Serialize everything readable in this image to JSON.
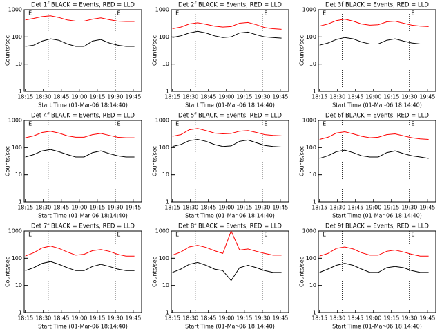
{
  "chart_data": [
    {
      "type": "line",
      "title": "Det 1f BLACK = Events, RED = LLD",
      "xlabel": "Start Time (01-Mar-06 18:14:40)",
      "ylabel": "Counts/sec",
      "log_y": true,
      "x": [
        "18:15",
        "18:22",
        "18:29",
        "18:36",
        "18:43",
        "18:50",
        "18:57",
        "19:04",
        "19:11",
        "19:18",
        "19:25",
        "19:32",
        "19:39",
        "19:46"
      ],
      "xlim": [
        "18:14",
        "19:52"
      ],
      "xticks": [
        "18:15",
        "18:30",
        "18:45",
        "19:00",
        "19:15",
        "19:30",
        "19:45"
      ],
      "ylim": [
        1,
        1000
      ],
      "yticks": [
        1,
        10,
        100,
        1000
      ],
      "vlines": [
        "18:34",
        "19:30"
      ],
      "annotations": [
        {
          "text": "E",
          "x": "18:19"
        },
        {
          "text": "E",
          "x": "19:33"
        }
      ],
      "series": [
        {
          "color": "#000000",
          "values": [
            45,
            50,
            70,
            85,
            75,
            55,
            45,
            45,
            70,
            80,
            60,
            50,
            45,
            45
          ]
        },
        {
          "color": "#ff0000",
          "values": [
            420,
            480,
            560,
            600,
            520,
            420,
            380,
            380,
            450,
            500,
            430,
            380,
            370,
            370
          ]
        }
      ]
    },
    {
      "type": "line",
      "title": "Det 2f BLACK = Events, RED = LLD",
      "xlabel": "Start Time (01-Mar-06 18:14:40)",
      "ylabel": "Counts/sec",
      "log_y": true,
      "x": [
        "18:15",
        "18:22",
        "18:29",
        "18:36",
        "18:43",
        "18:50",
        "18:57",
        "19:04",
        "19:11",
        "19:18",
        "19:25",
        "19:32",
        "19:39",
        "19:46"
      ],
      "xlim": [
        "18:14",
        "19:52"
      ],
      "xticks": [
        "18:15",
        "18:30",
        "18:45",
        "19:00",
        "19:15",
        "19:30",
        "19:45"
      ],
      "ylim": [
        1,
        1000
      ],
      "yticks": [
        1,
        10,
        100,
        1000
      ],
      "vlines": [
        "18:34",
        "19:30"
      ],
      "annotations": [
        {
          "text": "E",
          "x": "18:19"
        },
        {
          "text": "E",
          "x": "19:33"
        }
      ],
      "series": [
        {
          "color": "#000000",
          "values": [
            95,
            110,
            140,
            160,
            140,
            110,
            95,
            100,
            140,
            150,
            120,
            100,
            95,
            90
          ]
        },
        {
          "color": "#ff0000",
          "values": [
            200,
            230,
            300,
            330,
            290,
            250,
            230,
            240,
            320,
            340,
            280,
            220,
            200,
            190
          ]
        }
      ]
    },
    {
      "type": "line",
      "title": "Det 3f BLACK = Events, RED = LLD",
      "xlabel": "Start Time (01-Mar-06 18:14:40)",
      "ylabel": "Counts/sec",
      "log_y": true,
      "x": [
        "18:15",
        "18:22",
        "18:29",
        "18:36",
        "18:43",
        "18:50",
        "18:57",
        "19:04",
        "19:11",
        "19:18",
        "19:25",
        "19:32",
        "19:39",
        "19:46"
      ],
      "xlim": [
        "18:14",
        "19:52"
      ],
      "xticks": [
        "18:15",
        "18:30",
        "18:45",
        "19:00",
        "19:15",
        "19:30",
        "19:45"
      ],
      "ylim": [
        1,
        1000
      ],
      "yticks": [
        1,
        10,
        100,
        1000
      ],
      "vlines": [
        "18:34",
        "19:30"
      ],
      "annotations": [
        {
          "text": "E",
          "x": "18:19"
        },
        {
          "text": "E",
          "x": "19:33"
        }
      ],
      "series": [
        {
          "color": "#000000",
          "values": [
            50,
            60,
            80,
            95,
            85,
            65,
            55,
            55,
            75,
            85,
            70,
            60,
            55,
            55
          ]
        },
        {
          "color": "#ff0000",
          "values": [
            250,
            300,
            400,
            450,
            380,
            300,
            270,
            280,
            360,
            380,
            320,
            270,
            250,
            240
          ]
        }
      ]
    },
    {
      "type": "line",
      "title": "Det 4f BLACK = Events, RED = LLD",
      "xlabel": "Start Time (01-Mar-06 18:14:40)",
      "ylabel": "Counts/sec",
      "log_y": true,
      "x": [
        "18:15",
        "18:22",
        "18:29",
        "18:36",
        "18:43",
        "18:50",
        "18:57",
        "19:04",
        "19:11",
        "19:18",
        "19:25",
        "19:32",
        "19:39",
        "19:46"
      ],
      "xlim": [
        "18:14",
        "19:52"
      ],
      "xticks": [
        "18:15",
        "18:30",
        "18:45",
        "19:00",
        "19:15",
        "19:30",
        "19:45"
      ],
      "ylim": [
        1,
        1000
      ],
      "yticks": [
        1,
        10,
        100,
        1000
      ],
      "vlines": [
        "18:34",
        "19:30"
      ],
      "annotations": [
        {
          "text": "E",
          "x": "18:19"
        },
        {
          "text": "E",
          "x": "19:33"
        }
      ],
      "series": [
        {
          "color": "#000000",
          "values": [
            45,
            55,
            75,
            85,
            70,
            55,
            45,
            45,
            65,
            75,
            60,
            50,
            45,
            45
          ]
        },
        {
          "color": "#ff0000",
          "values": [
            230,
            270,
            360,
            400,
            340,
            270,
            240,
            240,
            300,
            330,
            280,
            240,
            230,
            230
          ]
        }
      ]
    },
    {
      "type": "line",
      "title": "Det 5f BLACK = Events, RED = LLD",
      "xlabel": "Start Time (01-Mar-06 18:14:40)",
      "ylabel": "Counts/sec",
      "log_y": true,
      "x": [
        "18:15",
        "18:22",
        "18:29",
        "18:36",
        "18:43",
        "18:50",
        "18:57",
        "19:04",
        "19:11",
        "19:18",
        "19:25",
        "19:32",
        "19:39",
        "19:46"
      ],
      "xlim": [
        "18:14",
        "19:52"
      ],
      "xticks": [
        "18:15",
        "18:30",
        "18:45",
        "19:00",
        "19:15",
        "19:30",
        "19:45"
      ],
      "ylim": [
        1,
        1000
      ],
      "yticks": [
        1,
        10,
        100,
        1000
      ],
      "vlines": [
        "18:34",
        "19:30"
      ],
      "annotations": [
        {
          "text": "E",
          "x": "18:19"
        },
        {
          "text": "E",
          "x": "19:33"
        }
      ],
      "series": [
        {
          "color": "#000000",
          "values": [
            110,
            130,
            180,
            200,
            170,
            130,
            110,
            115,
            170,
            190,
            150,
            120,
            110,
            105
          ]
        },
        {
          "color": "#ff0000",
          "values": [
            260,
            300,
            450,
            500,
            420,
            340,
            320,
            330,
            400,
            420,
            360,
            300,
            280,
            270
          ]
        }
      ]
    },
    {
      "type": "line",
      "title": "Det 6f BLACK = Events, RED = LLD",
      "xlabel": "Start Time (01-Mar-06 18:14:40)",
      "ylabel": "Counts/sec",
      "log_y": true,
      "x": [
        "18:15",
        "18:22",
        "18:29",
        "18:36",
        "18:43",
        "18:50",
        "18:57",
        "19:04",
        "19:11",
        "19:18",
        "19:25",
        "19:32",
        "19:39",
        "19:46"
      ],
      "xlim": [
        "18:14",
        "19:52"
      ],
      "xticks": [
        "18:15",
        "18:30",
        "18:45",
        "19:00",
        "19:15",
        "19:30",
        "19:45"
      ],
      "ylim": [
        1,
        1000
      ],
      "yticks": [
        1,
        10,
        100,
        1000
      ],
      "vlines": [
        "18:34",
        "19:30"
      ],
      "annotations": [
        {
          "text": "E",
          "x": "18:19"
        },
        {
          "text": "E",
          "x": "19:33"
        }
      ],
      "series": [
        {
          "color": "#000000",
          "values": [
            40,
            50,
            70,
            80,
            65,
            50,
            45,
            45,
            65,
            75,
            60,
            50,
            45,
            40
          ]
        },
        {
          "color": "#ff0000",
          "values": [
            200,
            240,
            340,
            380,
            320,
            260,
            230,
            240,
            300,
            320,
            270,
            230,
            210,
            200
          ]
        }
      ]
    },
    {
      "type": "line",
      "title": "Det 7f BLACK = Events, RED = LLD",
      "xlabel": "Start Time (01-Mar-06 18:14:40)",
      "ylabel": "Counts/sec",
      "log_y": true,
      "x": [
        "18:15",
        "18:22",
        "18:29",
        "18:36",
        "18:43",
        "18:50",
        "18:57",
        "19:04",
        "19:11",
        "19:18",
        "19:25",
        "19:32",
        "19:39",
        "19:46"
      ],
      "xlim": [
        "18:14",
        "19:52"
      ],
      "xticks": [
        "18:15",
        "18:30",
        "18:45",
        "19:00",
        "19:15",
        "19:30",
        "19:45"
      ],
      "ylim": [
        1,
        1000
      ],
      "yticks": [
        1,
        10,
        100,
        1000
      ],
      "vlines": [
        "18:34",
        "19:30"
      ],
      "annotations": [
        {
          "text": "E",
          "x": "18:19"
        },
        {
          "text": "E",
          "x": "19:33"
        }
      ],
      "series": [
        {
          "color": "#000000",
          "values": [
            35,
            45,
            65,
            75,
            60,
            45,
            35,
            35,
            50,
            60,
            50,
            40,
            35,
            35
          ]
        },
        {
          "color": "#ff0000",
          "values": [
            120,
            160,
            240,
            280,
            230,
            170,
            130,
            140,
            190,
            210,
            180,
            140,
            120,
            120
          ]
        }
      ]
    },
    {
      "type": "line",
      "title": "Det 8f BLACK = Events, RED = LLD",
      "xlabel": "Start Time (01-Mar-06 18:14:40)",
      "ylabel": "Counts/sec",
      "log_y": true,
      "x": [
        "18:15",
        "18:22",
        "18:29",
        "18:36",
        "18:43",
        "18:50",
        "18:57",
        "19:04",
        "19:11",
        "19:18",
        "19:25",
        "19:32",
        "19:39",
        "19:46"
      ],
      "xlim": [
        "18:14",
        "19:52"
      ],
      "xticks": [
        "18:15",
        "18:30",
        "18:45",
        "19:00",
        "19:15",
        "19:30",
        "19:45"
      ],
      "ylim": [
        1,
        1000
      ],
      "yticks": [
        1,
        10,
        100,
        1000
      ],
      "vlines": [
        "18:34",
        "19:30"
      ],
      "annotations": [
        {
          "text": "E",
          "x": "18:19"
        },
        {
          "text": "E",
          "x": "19:33"
        }
      ],
      "series": [
        {
          "color": "#000000",
          "values": [
            30,
            40,
            60,
            70,
            55,
            40,
            35,
            15,
            45,
            55,
            45,
            35,
            30,
            30
          ]
        },
        {
          "color": "#ff0000",
          "values": [
            130,
            170,
            260,
            300,
            250,
            190,
            150,
            1000,
            200,
            220,
            180,
            150,
            130,
            130
          ]
        }
      ]
    },
    {
      "type": "line",
      "title": "Det 9f BLACK = Events, RED = LLD",
      "xlabel": "Start Time (01-Mar-06 18:14:40)",
      "ylabel": "Counts/sec",
      "log_y": true,
      "x": [
        "18:15",
        "18:22",
        "18:29",
        "18:36",
        "18:43",
        "18:50",
        "18:57",
        "19:04",
        "19:11",
        "19:18",
        "19:25",
        "19:32",
        "19:39",
        "19:46"
      ],
      "xlim": [
        "18:14",
        "19:52"
      ],
      "xticks": [
        "18:15",
        "18:30",
        "18:45",
        "19:00",
        "19:15",
        "19:30",
        "19:45"
      ],
      "ylim": [
        1,
        1000
      ],
      "yticks": [
        1,
        10,
        100,
        1000
      ],
      "vlines": [
        "18:34",
        "19:30"
      ],
      "annotations": [
        {
          "text": "E",
          "x": "18:19"
        },
        {
          "text": "E",
          "x": "19:33"
        }
      ],
      "series": [
        {
          "color": "#000000",
          "values": [
            30,
            40,
            55,
            65,
            55,
            40,
            30,
            30,
            45,
            50,
            45,
            35,
            30,
            30
          ]
        },
        {
          "color": "#ff0000",
          "values": [
            120,
            150,
            230,
            260,
            220,
            160,
            130,
            130,
            180,
            200,
            170,
            140,
            120,
            120
          ]
        }
      ]
    }
  ]
}
